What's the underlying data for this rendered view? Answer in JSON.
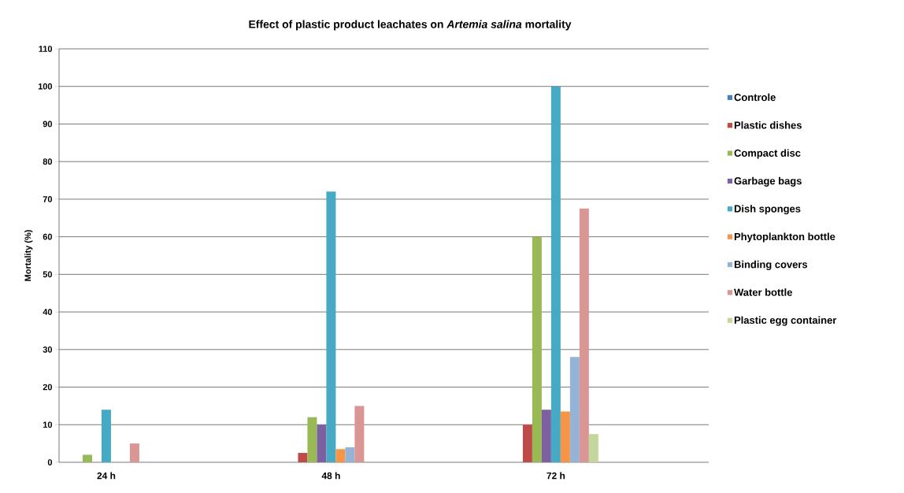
{
  "chart_data": {
    "type": "bar",
    "title": "Effect of plastic product leachates on *Artemia salina* mortality",
    "ylabel": "Mortality (%)",
    "categories": [
      "24 h",
      "48 h",
      "72 h"
    ],
    "series": [
      {
        "name": "Controle",
        "color": "#4a7ebb",
        "values": [
          0,
          0,
          0
        ]
      },
      {
        "name": "Plastic dishes",
        "color": "#be4b48",
        "values": [
          0,
          2.5,
          10
        ]
      },
      {
        "name": "Compact disc",
        "color": "#98b954",
        "values": [
          2,
          12,
          60
        ]
      },
      {
        "name": "Garbage bags",
        "color": "#7d60a0",
        "values": [
          0,
          10,
          14
        ]
      },
      {
        "name": "Dish sponges",
        "color": "#46aac5",
        "values": [
          14,
          72,
          100
        ]
      },
      {
        "name": "Phytoplankton bottle",
        "color": "#f69545",
        "values": [
          0,
          3.5,
          13.5
        ]
      },
      {
        "name": "Binding covers",
        "color": "#95b3d7",
        "values": [
          0,
          4,
          28
        ]
      },
      {
        "name": "Water bottle",
        "color": "#d99694",
        "values": [
          5,
          15,
          67.5
        ]
      },
      {
        "name": "Plastic egg container",
        "color": "#c3d69b",
        "values": [
          0,
          0,
          7.5
        ]
      }
    ],
    "ylim": [
      0,
      110
    ],
    "yticks": [
      0,
      10,
      20,
      30,
      40,
      50,
      60,
      70,
      80,
      90,
      100,
      110
    ],
    "grid": "y",
    "legend": "right"
  }
}
